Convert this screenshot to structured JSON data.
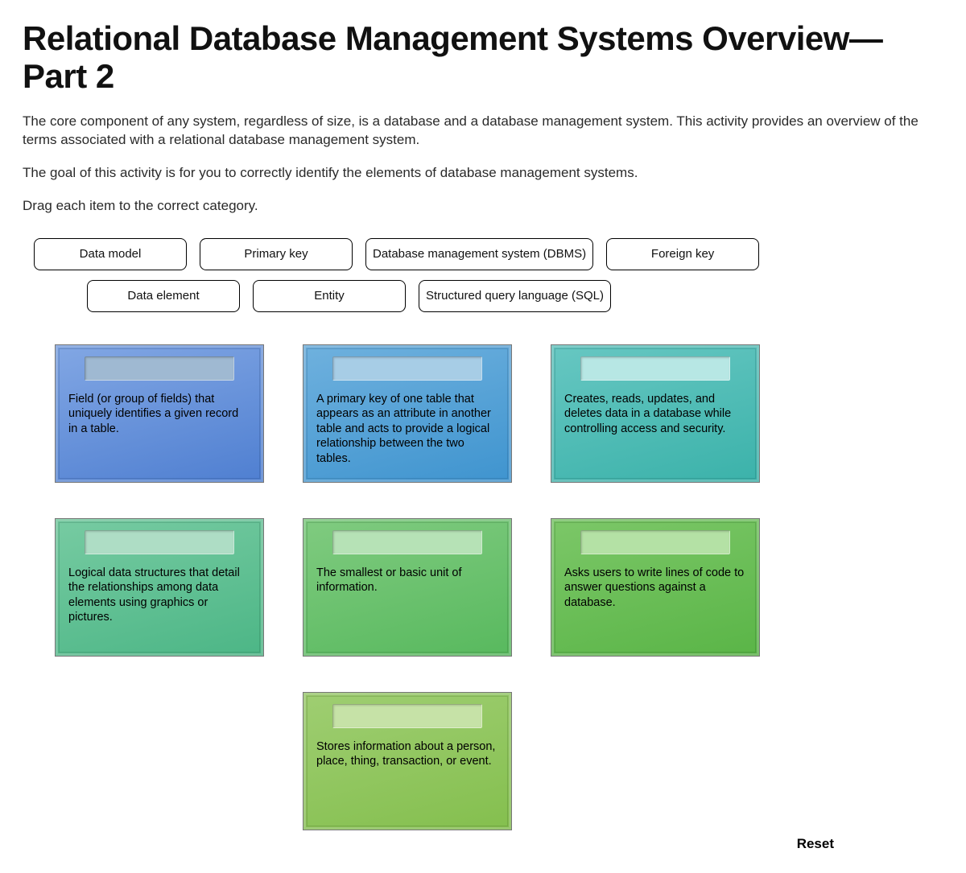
{
  "title": "Relational Database Management Systems Overview—Part 2",
  "paragraphs": [
    "The core component of any system, regardless of size, is a database and a database management system. This activity provides an overview of the terms associated with a relational database management system.",
    "The goal of this activity is for you to correctly identify the elements of database management systems.",
    "Drag each item to the correct category."
  ],
  "drag_items": {
    "row1": [
      "Data model",
      "Primary key",
      "Database management system (DBMS)",
      "Foreign key"
    ],
    "row2": [
      "Data element",
      "Entity",
      "Structured query language (SQL)"
    ]
  },
  "drop_cards": [
    {
      "text": "Field (or group of fields) that uniquely identifies a given record in a table.",
      "bg_gradient": [
        "#82a7e4",
        "#4f7fd1"
      ],
      "slot_color": "#9fb9d2",
      "border_inner": "#2f5aa8"
    },
    {
      "text": "A primary key of one table that appears as an attribute in another table and acts to provide a logical relationship between the two tables.",
      "bg_gradient": [
        "#6fb1de",
        "#3f94cf"
      ],
      "slot_color": "#a7cde6",
      "border_inner": "#2a6fa3"
    },
    {
      "text": "Creates, reads, updates, and deletes data in a database while controlling access and security.",
      "bg_gradient": [
        "#67c7c2",
        "#3bb2aa"
      ],
      "slot_color": "#b7e7e4",
      "border_inner": "#1f8a82"
    },
    {
      "text": "Logical data structures that detail the relationships among data elements using graphics or pictures.",
      "bg_gradient": [
        "#77cba2",
        "#4cb686"
      ],
      "slot_color": "#aeddc5",
      "border_inner": "#2d8c60"
    },
    {
      "text": "The smallest or basic unit of information.",
      "bg_gradient": [
        "#80cb80",
        "#58b95e"
      ],
      "slot_color": "#b6e2b6",
      "border_inner": "#318b3a"
    },
    {
      "text": "Asks users to write lines of code to answer questions against a database.",
      "bg_gradient": [
        "#7cc768",
        "#5ab547"
      ],
      "slot_color": "#b4e1a5",
      "border_inner": "#35862a"
    },
    null,
    {
      "text": "Stores information about a person, place, thing, transaction, or event.",
      "bg_gradient": [
        "#9fce72",
        "#84bf4e"
      ],
      "slot_color": "#c6e2a7",
      "border_inner": "#5c8f2f"
    },
    null
  ],
  "reset_label": "Reset",
  "style": {
    "title_fontsize": 42,
    "body_fontsize": 17,
    "card_fontsize": 14.5,
    "page_bg": "#ffffff",
    "text_color": "#111111",
    "drag_border": "#000000",
    "card_border": "#777777"
  }
}
